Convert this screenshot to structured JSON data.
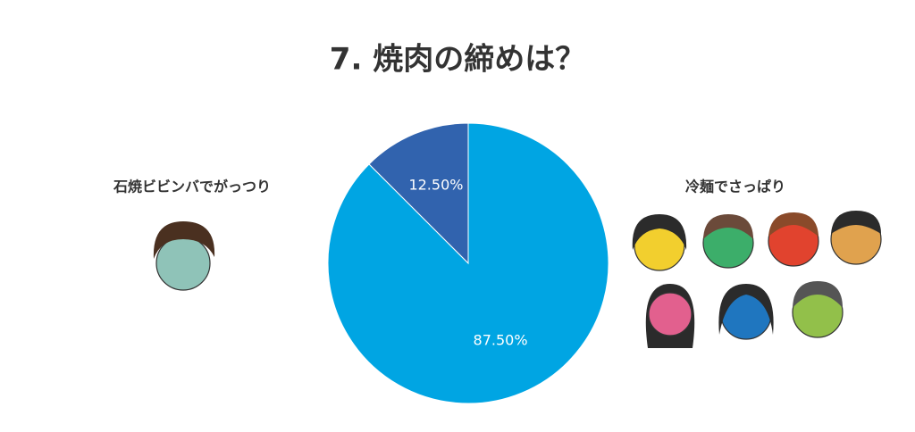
{
  "chart_data": {
    "type": "pie",
    "title": "7. 焼肉の締めは？",
    "categories": [
      "石焼ビビンバでがっつり",
      "冷麺でさっぱり"
    ],
    "values": [
      12.5,
      87.5
    ],
    "value_labels": [
      "12.50%",
      "87.50%"
    ],
    "colors": [
      "#3163ae",
      "#00a5e3"
    ]
  }
}
